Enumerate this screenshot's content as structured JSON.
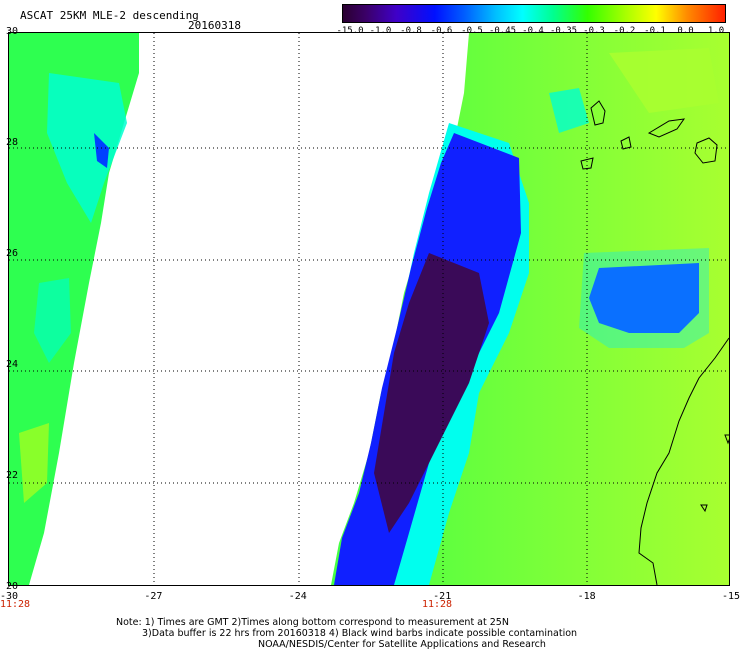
{
  "header": {
    "title": "ASCAT 25KM MLE-2 descending",
    "date": "20160318"
  },
  "colorbar": {
    "ticks": [
      "-15.0",
      "-1.0",
      "-0.8",
      "-0.6",
      "-0.5",
      "-0.45",
      "-0.4",
      "-0.35",
      "-0.3",
      "-0.2",
      "-0.1",
      "0.0",
      "1.0"
    ],
    "colors": [
      "#2a0030",
      "#3b0068",
      "#3f00c8",
      "#0010ff",
      "#0060ff",
      "#00bfff",
      "#00ffff",
      "#00ff90",
      "#33ff00",
      "#a8ff00",
      "#ffff00",
      "#ff8c00",
      "#ff2000"
    ]
  },
  "axes": {
    "lat_labels": [
      "30",
      "28",
      "26",
      "24",
      "22",
      "20"
    ],
    "lon_labels": [
      "-30",
      "-27",
      "-24",
      "-21",
      "-18",
      "-15"
    ],
    "time_labels": [
      "11:28",
      "11:28"
    ]
  },
  "notes": {
    "line1": "Note: 1) Times are GMT 2)Times along bottom correspond to measurement at 25N",
    "line2": "3)Data buffer is 22 hrs from 20160318 4) Black wind barbs indicate possible contamination",
    "line3": "NOAA/NESDIS/Center for Satellite Applications and Research"
  }
}
